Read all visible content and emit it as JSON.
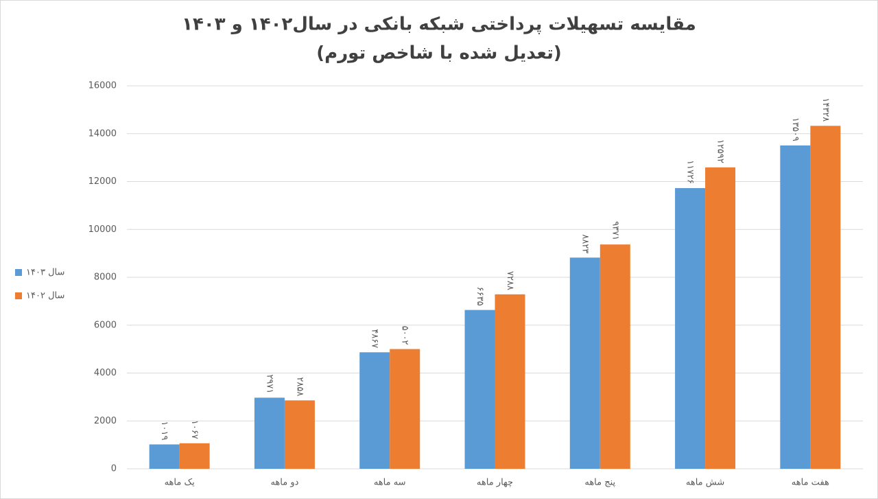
{
  "chart_data": {
    "type": "bar",
    "title": "مقایسه تسهیلات پرداختی شبکه بانکی در سال۱۴۰۲ و ۱۴۰۳",
    "subtitle": "(تعدیل شده با شاخص تورم)",
    "categories": [
      "یک ماهه",
      "دو ماهه",
      "سه ماهه",
      "چهار ماهه",
      "پنج ماهه",
      "شش ماهه",
      "هفت ماهه"
    ],
    "series": [
      {
        "name": "سال ۱۴۰۳",
        "color": "#5b9bd5",
        "values": [
          1019,
          2971,
          4867,
          6635,
          8823,
          11726,
          13509
        ],
        "value_labels": [
          "۱۰۱۹",
          "۲۹۷۱",
          "۴۸۶۷",
          "۶۶۳۵",
          "۸۸۲۳",
          "۱۱۷۲۶",
          "۱۳۵۰۹"
        ]
      },
      {
        "name": "سال ۱۴۰۲",
        "color": "#ed7d31",
        "values": [
          1067,
          2858,
          5002,
          7288,
          9371,
          12592,
          14328
        ],
        "value_labels": [
          "۱۰۶۷",
          "۲۸۵۸",
          "۵۰۰۲",
          "۷۲۸۸",
          "۹۳۷۱",
          "۱۲۵۹۲",
          "۱۴۳۲۸"
        ]
      }
    ],
    "ylim": [
      0,
      16000
    ],
    "yticks": [
      0,
      2000,
      4000,
      6000,
      8000,
      10000,
      12000,
      14000,
      16000
    ],
    "grid": true,
    "legend": "left"
  }
}
